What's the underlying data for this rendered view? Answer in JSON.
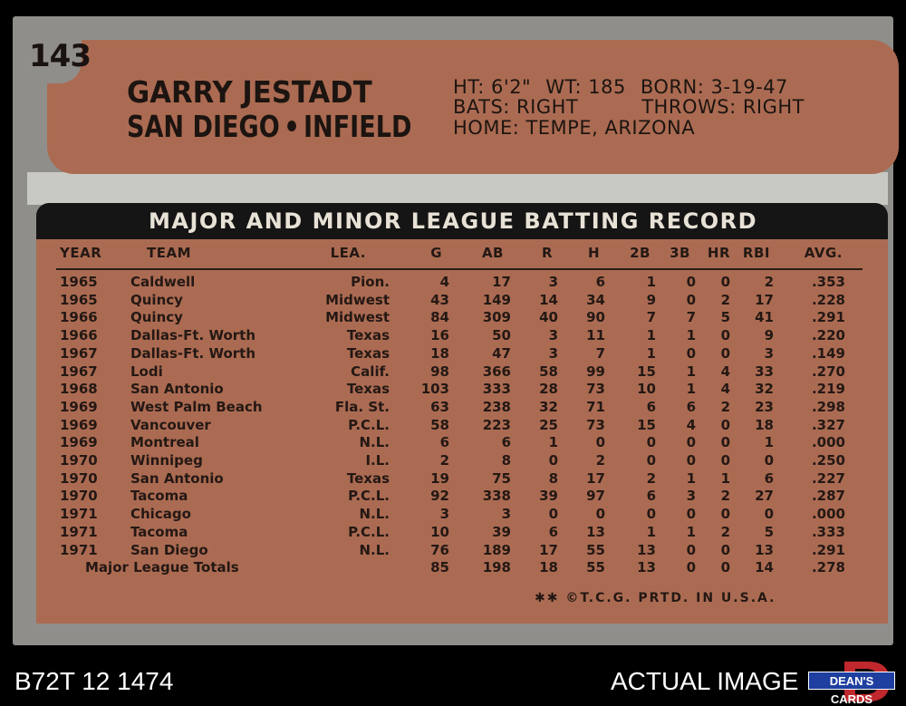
{
  "card": {
    "number": "143",
    "name": "GARRY JESTADT",
    "team": "SAN DIEGO",
    "position": "INFIELD",
    "bio": {
      "line1_a": "HT: 6'2\"",
      "line1_b": "WT: 185",
      "line1_c": "BORN: 3-19-47",
      "line2_a": "BATS: RIGHT",
      "line2_b": "THROWS: RIGHT",
      "line3": "HOME: TEMPE, ARIZONA"
    },
    "banner": "MAJOR AND MINOR LEAGUE BATTING RECORD",
    "columns": [
      "YEAR",
      "TEAM",
      "LEA.",
      "G",
      "AB",
      "R",
      "H",
      "2B",
      "3B",
      "HR",
      "RBI",
      "AVG."
    ],
    "rows": [
      [
        "1965",
        "Caldwell",
        "Pion.",
        "4",
        "17",
        "3",
        "6",
        "1",
        "0",
        "0",
        "2",
        ".353"
      ],
      [
        "1965",
        "Quincy",
        "Midwest",
        "43",
        "149",
        "14",
        "34",
        "9",
        "0",
        "2",
        "17",
        ".228"
      ],
      [
        "1966",
        "Quincy",
        "Midwest",
        "84",
        "309",
        "40",
        "90",
        "7",
        "7",
        "5",
        "41",
        ".291"
      ],
      [
        "1966",
        "Dallas-Ft. Worth",
        "Texas",
        "16",
        "50",
        "3",
        "11",
        "1",
        "1",
        "0",
        "9",
        ".220"
      ],
      [
        "1967",
        "Dallas-Ft. Worth",
        "Texas",
        "18",
        "47",
        "3",
        "7",
        "1",
        "0",
        "0",
        "3",
        ".149"
      ],
      [
        "1967",
        "Lodi",
        "Calif.",
        "98",
        "366",
        "58",
        "99",
        "15",
        "1",
        "4",
        "33",
        ".270"
      ],
      [
        "1968",
        "San Antonio",
        "Texas",
        "103",
        "333",
        "28",
        "73",
        "10",
        "1",
        "4",
        "32",
        ".219"
      ],
      [
        "1969",
        "West Palm Beach",
        "Fla. St.",
        "63",
        "238",
        "32",
        "71",
        "6",
        "6",
        "2",
        "23",
        ".298"
      ],
      [
        "1969",
        "Vancouver",
        "P.C.L.",
        "58",
        "223",
        "25",
        "73",
        "15",
        "4",
        "0",
        "18",
        ".327"
      ],
      [
        "1969",
        "Montreal",
        "N.L.",
        "6",
        "6",
        "1",
        "0",
        "0",
        "0",
        "0",
        "1",
        ".000"
      ],
      [
        "1970",
        "Winnipeg",
        "I.L.",
        "2",
        "8",
        "0",
        "2",
        "0",
        "0",
        "0",
        "0",
        ".250"
      ],
      [
        "1970",
        "San Antonio",
        "Texas",
        "19",
        "75",
        "8",
        "17",
        "2",
        "1",
        "1",
        "6",
        ".227"
      ],
      [
        "1970",
        "Tacoma",
        "P.C.L.",
        "92",
        "338",
        "39",
        "97",
        "6",
        "3",
        "2",
        "27",
        ".287"
      ],
      [
        "1971",
        "Chicago",
        "N.L.",
        "3",
        "3",
        "0",
        "0",
        "0",
        "0",
        "0",
        "0",
        ".000"
      ],
      [
        "1971",
        "Tacoma",
        "P.C.L.",
        "10",
        "39",
        "6",
        "13",
        "1",
        "1",
        "2",
        "5",
        ".333"
      ],
      [
        "1971",
        "San Diego",
        "N.L.",
        "76",
        "189",
        "17",
        "55",
        "13",
        "0",
        "0",
        "13",
        ".291"
      ]
    ],
    "totals": [
      "Major League Totals",
      "85",
      "198",
      "18",
      "55",
      "13",
      "0",
      "0",
      "14",
      ".278"
    ],
    "copyright": "✱✱ ©T.C.G. PRTD. IN U.S.A."
  },
  "footer": {
    "left": "B72T 12 1474",
    "right": "ACTUAL IMAGE",
    "logo_text": "DEAN'S CARDS"
  },
  "colors": {
    "card_gray": "#8f8e8a",
    "card_brown": "#ab6b52",
    "banner_black": "#151515",
    "logo_blue": "#1e3fa0"
  }
}
